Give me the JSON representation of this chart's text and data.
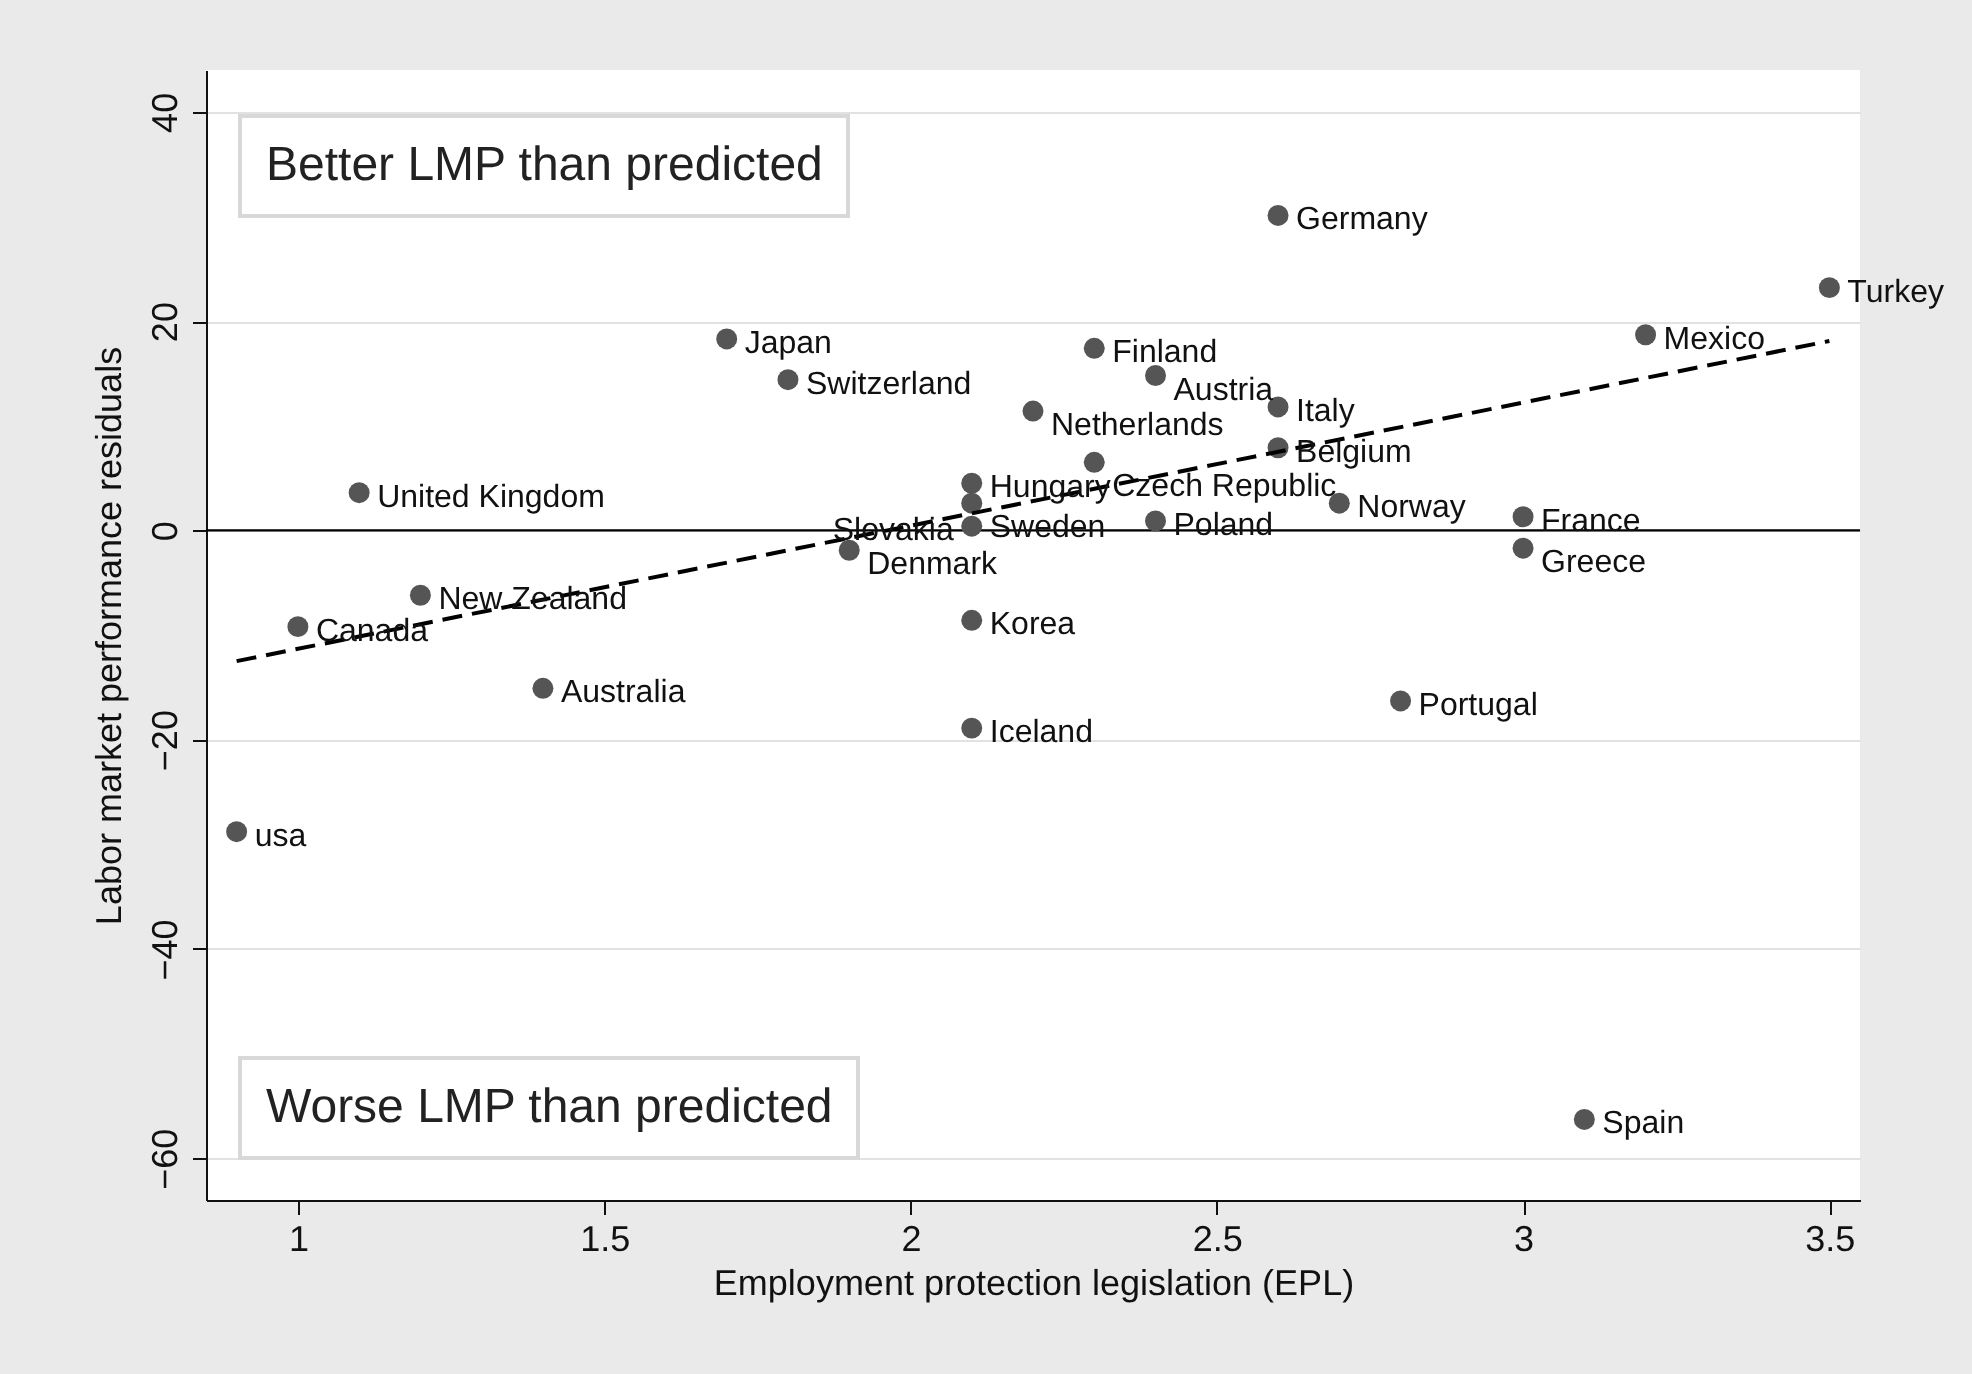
{
  "chart_data": {
    "type": "scatter",
    "xlabel": "Employment protection legislation (EPL)",
    "ylabel": "Labor market performance residuals",
    "xlim": [
      0.85,
      3.55
    ],
    "xticks": [
      1,
      1.5,
      2,
      2.5,
      3,
      3.5
    ],
    "ylim": [
      -64,
      44
    ],
    "yticks": [
      -60,
      -40,
      -20,
      0,
      20,
      40
    ],
    "grid": "y",
    "marker": "circle",
    "series": [
      {
        "color": "#555555",
        "x": [
          2.6,
          3.5,
          3.2,
          1.7,
          2.3,
          2.4,
          1.8,
          2.6,
          2.2,
          2.6,
          2.3,
          2.1,
          1.1,
          2.1,
          2.7,
          3.0,
          2.4,
          2.1,
          3.0,
          1.9,
          1.2,
          1.0,
          2.1,
          1.4,
          2.8,
          2.1,
          0.9,
          3.1
        ],
        "values": [
          30.1,
          23.2,
          18.7,
          18.3,
          17.4,
          14.8,
          14.4,
          11.8,
          11.4,
          7.9,
          6.5,
          4.5,
          3.6,
          2.6,
          2.6,
          1.3,
          0.9,
          0.4,
          -1.7,
          -1.9,
          -6.2,
          -9.2,
          -8.6,
          -15.1,
          -16.3,
          -18.9,
          -28.8,
          -56.3
        ]
      },
      {
        "type": "line",
        "color": "#000000",
        "line_style": "dashed",
        "marker": "none",
        "x": [
          0.9,
          3.5
        ],
        "values": [
          -12.5,
          18.1
        ]
      }
    ],
    "ref_lines": [
      {
        "axis": "y",
        "value": 0,
        "color": "#000000"
      }
    ],
    "annotations": [
      "Better LMP than predicted",
      "Worse LMP than predicted",
      {
        "text": "Germany",
        "x": 2.6,
        "y": 30.1
      },
      {
        "text": "Turkey",
        "x": 3.5,
        "y": 23.2
      },
      {
        "text": "Mexico",
        "x": 3.2,
        "y": 18.7
      },
      {
        "text": "Japan",
        "x": 1.7,
        "y": 18.3
      },
      {
        "text": "Finland",
        "x": 2.3,
        "y": 17.4
      },
      {
        "text": "Austria",
        "x": 2.4,
        "y": 14.8
      },
      {
        "text": "Switzerland",
        "x": 1.8,
        "y": 14.4
      },
      {
        "text": "Italy",
        "x": 2.6,
        "y": 11.8
      },
      {
        "text": "Netherlands",
        "x": 2.2,
        "y": 11.4
      },
      {
        "text": "Belgium",
        "x": 2.6,
        "y": 7.9
      },
      {
        "text": "Czech Republic",
        "x": 2.3,
        "y": 6.5
      },
      {
        "text": "Hungary",
        "x": 2.1,
        "y": 4.5
      },
      {
        "text": "United Kingdom",
        "x": 1.1,
        "y": 3.6
      },
      {
        "text": "Sweden",
        "x": 2.1,
        "y": 2.6
      },
      {
        "text": "Norway",
        "x": 2.7,
        "y": 2.6
      },
      {
        "text": "France",
        "x": 3.0,
        "y": 1.3
      },
      {
        "text": "Poland",
        "x": 2.4,
        "y": 0.9
      },
      {
        "text": "Slovakia",
        "x": 2.1,
        "y": 0.4
      },
      {
        "text": "Greece",
        "x": 3.0,
        "y": -1.7
      },
      {
        "text": "Denmark",
        "x": 1.9,
        "y": -1.9
      },
      {
        "text": "New Zealand",
        "x": 1.2,
        "y": -6.2
      },
      {
        "text": "Canada",
        "x": 1.0,
        "y": -9.2
      },
      {
        "text": "Korea",
        "x": 2.1,
        "y": -8.6
      },
      {
        "text": "Australia",
        "x": 1.4,
        "y": -15.1
      },
      {
        "text": "Portugal",
        "x": 2.8,
        "y": -16.3
      },
      {
        "text": "Iceland",
        "x": 2.1,
        "y": -18.9
      },
      {
        "text": "usa",
        "x": 0.9,
        "y": -28.8
      },
      {
        "text": "Spain",
        "x": 3.1,
        "y": -56.3
      }
    ]
  }
}
